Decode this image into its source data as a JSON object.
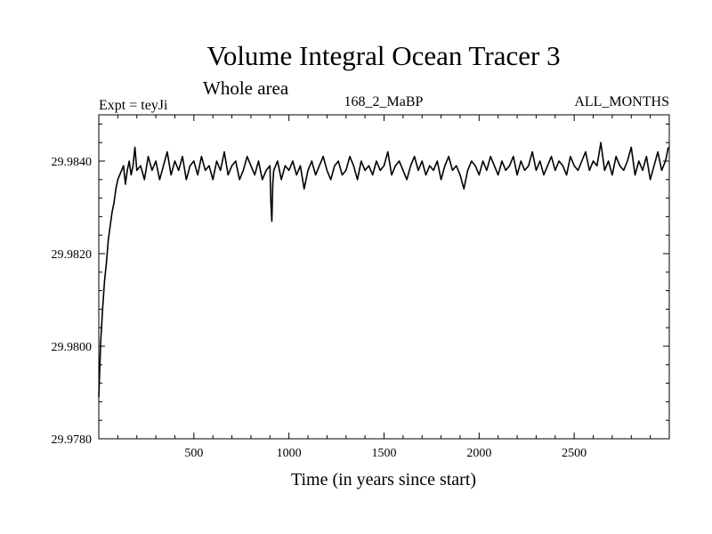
{
  "chart_data": {
    "type": "line",
    "title": "Volume Integral Ocean Tracer 3",
    "subtitle": "Whole area",
    "header_left": "Expt = teyJi",
    "header_center": "168_2_MaBP",
    "header_right": "ALL_MONTHS",
    "xlabel": "Time (in years since start)",
    "ylabel": "",
    "xlim": [
      0,
      3000
    ],
    "ylim": [
      29.978,
      29.985
    ],
    "x_ticks": [
      500,
      1000,
      1500,
      2000,
      2500
    ],
    "y_ticks": [
      29.978,
      29.98,
      29.982,
      29.984
    ],
    "x_tick_labels": [
      "500",
      "1000",
      "1500",
      "2000",
      "2500"
    ],
    "y_tick_labels": [
      "29.9780",
      "29.9800",
      "29.9820",
      "29.9840"
    ],
    "grid": false,
    "series": [
      {
        "color": "#000000",
        "x": [
          0,
          10,
          20,
          30,
          40,
          50,
          60,
          70,
          80,
          90,
          100,
          110,
          120,
          130,
          140,
          150,
          160,
          170,
          180,
          190,
          200,
          220,
          240,
          260,
          280,
          300,
          320,
          340,
          360,
          380,
          400,
          420,
          440,
          460,
          480,
          500,
          520,
          540,
          560,
          580,
          600,
          620,
          640,
          660,
          680,
          700,
          720,
          740,
          760,
          780,
          800,
          820,
          840,
          860,
          880,
          900,
          905,
          910,
          915,
          920,
          940,
          960,
          980,
          1000,
          1020,
          1040,
          1060,
          1080,
          1100,
          1120,
          1140,
          1160,
          1180,
          1200,
          1220,
          1240,
          1260,
          1280,
          1300,
          1320,
          1340,
          1360,
          1380,
          1400,
          1420,
          1440,
          1460,
          1480,
          1500,
          1520,
          1540,
          1560,
          1580,
          1600,
          1620,
          1640,
          1660,
          1680,
          1700,
          1720,
          1740,
          1760,
          1780,
          1800,
          1820,
          1840,
          1860,
          1880,
          1900,
          1920,
          1940,
          1960,
          1980,
          2000,
          2020,
          2040,
          2060,
          2080,
          2100,
          2120,
          2140,
          2160,
          2180,
          2200,
          2220,
          2240,
          2260,
          2280,
          2300,
          2320,
          2340,
          2360,
          2380,
          2400,
          2420,
          2440,
          2460,
          2480,
          2500,
          2520,
          2540,
          2560,
          2580,
          2600,
          2620,
          2640,
          2660,
          2680,
          2700,
          2720,
          2740,
          2760,
          2780,
          2800,
          2820,
          2840,
          2860,
          2880,
          2900,
          2920,
          2940,
          2960,
          2980,
          2995
        ],
        "y": [
          29.9789,
          29.9801,
          29.9808,
          29.9814,
          29.9818,
          29.9823,
          29.9826,
          29.9829,
          29.9831,
          29.9834,
          29.9836,
          29.9837,
          29.9838,
          29.9839,
          29.9835,
          29.9838,
          29.984,
          29.9837,
          29.9839,
          29.9843,
          29.9838,
          29.9839,
          29.9836,
          29.9841,
          29.9838,
          29.984,
          29.9836,
          29.9839,
          29.9842,
          29.9837,
          29.984,
          29.9838,
          29.9841,
          29.9836,
          29.9839,
          29.984,
          29.9837,
          29.9841,
          29.9838,
          29.9839,
          29.9836,
          29.984,
          29.9838,
          29.9842,
          29.9837,
          29.9839,
          29.984,
          29.9836,
          29.9838,
          29.9841,
          29.9839,
          29.9837,
          29.984,
          29.9836,
          29.9838,
          29.9839,
          29.9831,
          29.9827,
          29.9835,
          29.9838,
          29.984,
          29.9836,
          29.9839,
          29.9838,
          29.984,
          29.9837,
          29.9839,
          29.9834,
          29.9838,
          29.984,
          29.9837,
          29.9839,
          29.9841,
          29.9838,
          29.9836,
          29.9839,
          29.984,
          29.9837,
          29.9838,
          29.9841,
          29.9839,
          29.9836,
          29.984,
          29.9838,
          29.9839,
          29.9837,
          29.984,
          29.9838,
          29.9839,
          29.9842,
          29.9837,
          29.9839,
          29.984,
          29.9838,
          29.9836,
          29.9839,
          29.9841,
          29.9838,
          29.984,
          29.9837,
          29.9839,
          29.9838,
          29.984,
          29.9836,
          29.9839,
          29.9841,
          29.9838,
          29.9839,
          29.9837,
          29.9834,
          29.9838,
          29.984,
          29.9839,
          29.9837,
          29.984,
          29.9838,
          29.9841,
          29.9839,
          29.9837,
          29.984,
          29.9838,
          29.9839,
          29.9841,
          29.9837,
          29.984,
          29.9838,
          29.9839,
          29.9842,
          29.9838,
          29.984,
          29.9837,
          29.9839,
          29.9841,
          29.9838,
          29.984,
          29.9839,
          29.9837,
          29.9841,
          29.9839,
          29.9838,
          29.984,
          29.9842,
          29.9838,
          29.984,
          29.9839,
          29.9844,
          29.9838,
          29.984,
          29.9837,
          29.9841,
          29.9839,
          29.9838,
          29.984,
          29.9843,
          29.9837,
          29.984,
          29.9838,
          29.9841,
          29.9836,
          29.9839,
          29.9842,
          29.9838,
          29.984,
          29.9843
        ]
      }
    ]
  }
}
